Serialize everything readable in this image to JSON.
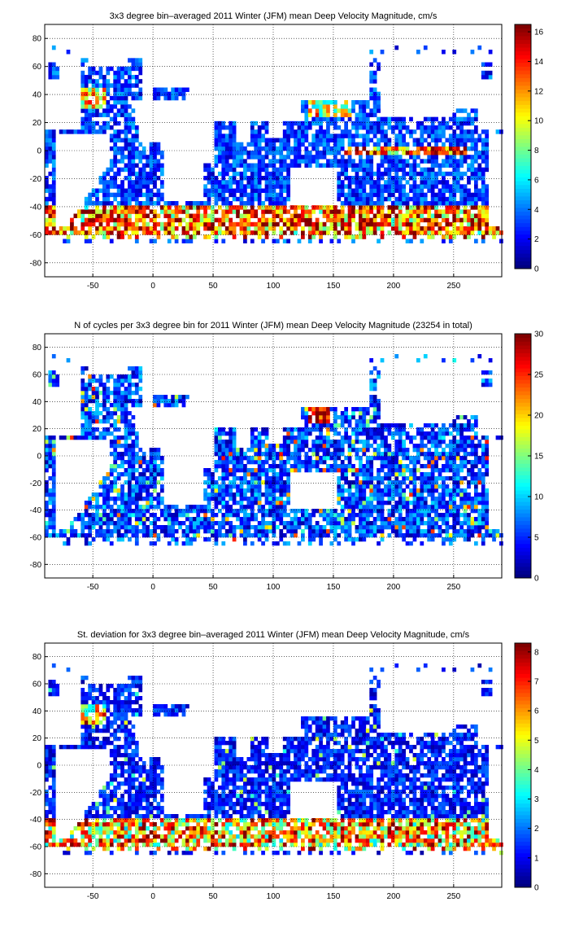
{
  "figure": "three stacked global maps with colorbars",
  "chart_data": [
    {
      "type": "heatmap",
      "title": "3x3 degree bin–averaged 2011 Winter (JFM) mean Deep Velocity Magnitude, cm/s",
      "xlim": [
        -90,
        290
      ],
      "ylim": [
        -90,
        90
      ],
      "xticks": [
        -50,
        0,
        50,
        100,
        150,
        200,
        250
      ],
      "yticks": [
        -80,
        -60,
        -40,
        -20,
        0,
        20,
        40,
        60,
        80
      ],
      "grid": true,
      "bin_size_deg": 3,
      "colorbar": {
        "min": 0,
        "max": 16.5,
        "ticks": [
          0,
          2,
          4,
          6,
          8,
          10,
          12,
          14,
          16
        ],
        "colormap": "jet"
      },
      "typical_value_range": [
        1,
        4
      ],
      "high_value_zones": [
        "Antarctic Circumpolar Current band (~-40 to -60 lat)",
        "Gulf Stream region",
        "equatorial Pacific band",
        "Kuroshio"
      ],
      "peak_value": 16.5
    },
    {
      "type": "heatmap",
      "title": "N of cycles per 3x3 degree bin for 2011 Winter (JFM) mean Deep Velocity Magnitude (23254 in total)",
      "xlim": [
        -90,
        290
      ],
      "ylim": [
        -90,
        90
      ],
      "xticks": [
        -50,
        0,
        50,
        100,
        150,
        200,
        250
      ],
      "yticks": [
        -80,
        -60,
        -40,
        -20,
        0,
        20,
        40,
        60,
        80
      ],
      "grid": true,
      "bin_size_deg": 3,
      "total_cycles": 23254,
      "colorbar": {
        "min": 0,
        "max": 30,
        "ticks": [
          0,
          5,
          10,
          15,
          20,
          25,
          30
        ],
        "colormap": "jet"
      },
      "typical_value_range": [
        2,
        10
      ],
      "high_value_zones": [
        "Kuroshio / western North Pacific near 30N 140E",
        "scattered North Atlantic bins"
      ],
      "peak_value": 30
    },
    {
      "type": "heatmap",
      "title": "St. deviation for 3x3 degree bin–averaged 2011 Winter (JFM) mean Deep Velocity Magnitude, cm/s",
      "xlim": [
        -90,
        290
      ],
      "ylim": [
        -90,
        90
      ],
      "xticks": [
        -50,
        0,
        50,
        100,
        150,
        200,
        250
      ],
      "yticks": [
        -80,
        -60,
        -40,
        -20,
        0,
        20,
        40,
        60,
        80
      ],
      "grid": true,
      "bin_size_deg": 3,
      "colorbar": {
        "min": 0,
        "max": 8.3,
        "ticks": [
          0,
          1,
          2,
          3,
          4,
          5,
          6,
          7,
          8
        ],
        "colormap": "jet"
      },
      "typical_value_range": [
        0.5,
        2
      ],
      "high_value_zones": [
        "Antarctic Circumpolar Current band",
        "Gulf Stream region"
      ],
      "peak_value": 8.3
    }
  ]
}
